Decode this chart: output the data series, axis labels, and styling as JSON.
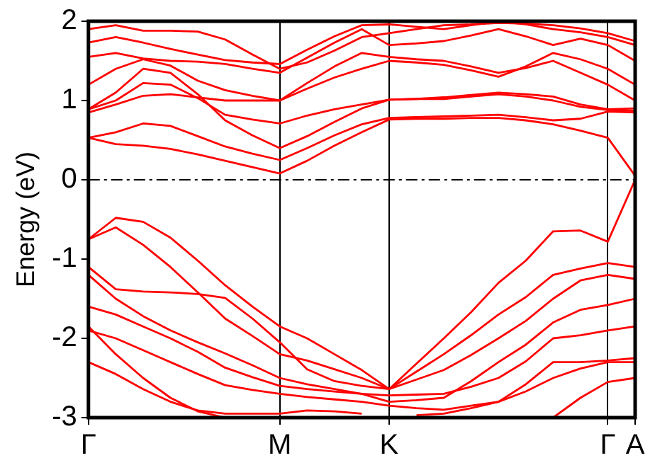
{
  "chart_data": {
    "type": "line",
    "ylabel": "Energy (eV)",
    "categories": [
      "Γ",
      null,
      null,
      null,
      null,
      null,
      null,
      "M",
      null,
      null,
      null,
      "K",
      null,
      null,
      null,
      null,
      null,
      null,
      null,
      "Γ",
      "A"
    ],
    "ylim": [
      -3,
      2
    ],
    "yticks": [
      -3,
      -2,
      -1,
      0,
      1,
      2
    ],
    "grid": "x",
    "legend": false,
    "marker": "none",
    "line_style": "solid",
    "ref_lines": [
      {
        "axis": "y",
        "value": 0,
        "color": "#000000",
        "line_style": "dashed"
      }
    ],
    "series": [
      {
        "color": "#ff0000",
        "values": [
          0.53,
          0.45,
          0.43,
          0.39,
          0.32,
          0.24,
          0.16,
          0.08,
          0.24,
          0.43,
          0.6,
          0.76,
          0.77,
          0.77,
          0.78,
          0.78,
          0.75,
          0.7,
          0.62,
          0.53,
          0.05
        ]
      },
      {
        "color": "#ff0000",
        "values": [
          0.53,
          0.6,
          0.71,
          0.68,
          0.55,
          0.42,
          0.33,
          0.25,
          0.4,
          0.56,
          0.7,
          0.78,
          0.79,
          0.8,
          0.81,
          0.82,
          0.79,
          0.75,
          0.77,
          0.86,
          0.85
        ]
      },
      {
        "color": "#ff0000",
        "values": [
          0.89,
          1.1,
          1.4,
          1.35,
          1.08,
          0.75,
          0.56,
          0.4,
          0.55,
          0.73,
          0.9,
          1.01,
          1.02,
          1.02,
          1.05,
          1.08,
          1.05,
          1.0,
          0.92,
          0.88,
          0.87
        ]
      },
      {
        "color": "#ff0000",
        "values": [
          0.89,
          1.0,
          1.22,
          1.2,
          1.03,
          0.82,
          0.76,
          0.71,
          0.81,
          0.89,
          0.95,
          1.01,
          1.02,
          1.04,
          1.07,
          1.1,
          1.08,
          1.05,
          0.95,
          0.89,
          0.9
        ]
      },
      {
        "color": "#ff0000",
        "values": [
          0.85,
          0.95,
          1.06,
          1.08,
          1.04,
          1.0,
          1.0,
          1.0,
          1.15,
          1.29,
          1.4,
          1.5,
          1.48,
          1.45,
          1.38,
          1.3,
          1.43,
          1.6,
          1.52,
          1.4,
          1.2
        ]
      },
      {
        "color": "#ff0000",
        "values": [
          1.2,
          1.4,
          1.52,
          1.44,
          1.25,
          1.13,
          1.06,
          1.0,
          1.22,
          1.43,
          1.6,
          1.55,
          1.52,
          1.5,
          1.43,
          1.35,
          1.41,
          1.5,
          1.35,
          1.2,
          1.0
        ]
      },
      {
        "color": "#ff0000",
        "values": [
          1.55,
          1.6,
          1.53,
          1.5,
          1.49,
          1.46,
          1.4,
          1.35,
          1.54,
          1.73,
          1.9,
          1.7,
          1.72,
          1.75,
          1.82,
          1.9,
          1.81,
          1.7,
          1.78,
          1.7,
          1.5
        ]
      },
      {
        "color": "#ff0000",
        "values": [
          1.73,
          1.8,
          1.73,
          1.65,
          1.58,
          1.51,
          1.48,
          1.46,
          1.64,
          1.81,
          1.95,
          1.96,
          1.93,
          1.9,
          1.95,
          2.0,
          1.96,
          1.9,
          1.86,
          1.8,
          1.7
        ]
      },
      {
        "color": "#ff0000",
        "values": [
          1.9,
          1.95,
          1.88,
          1.88,
          1.87,
          1.77,
          1.58,
          1.4,
          1.48,
          1.63,
          1.8,
          1.85,
          1.9,
          1.95,
          1.96,
          1.98,
          1.97,
          1.95,
          1.91,
          1.85,
          1.75
        ]
      },
      {
        "color": "#ff0000",
        "values": [
          -0.75,
          -0.48,
          -0.53,
          -0.73,
          -1.02,
          -1.33,
          -1.6,
          -1.85,
          -2.0,
          -2.2,
          -2.4,
          -2.64,
          -2.32,
          -2.0,
          -1.67,
          -1.3,
          -1.02,
          -0.65,
          -0.64,
          -0.78,
          0.0
        ]
      },
      {
        "color": "#ff0000",
        "values": [
          -0.75,
          -0.6,
          -0.82,
          -1.1,
          -1.42,
          -1.75,
          -1.97,
          -2.2,
          -2.28,
          -2.39,
          -2.5,
          -2.64,
          -2.42,
          -2.2,
          -1.96,
          -1.7,
          -1.48,
          -1.2,
          -1.12,
          -1.05,
          -1.1
        ]
      },
      {
        "color": "#ff0000",
        "values": [
          -1.1,
          -1.38,
          -1.41,
          -1.42,
          -1.44,
          -1.49,
          -1.75,
          -2.05,
          -2.39,
          -2.54,
          -2.6,
          -2.64,
          -2.52,
          -2.4,
          -2.21,
          -2.0,
          -1.78,
          -1.5,
          -1.27,
          -1.2,
          -1.25
        ]
      },
      {
        "color": "#ff0000",
        "values": [
          -1.2,
          -1.5,
          -1.72,
          -1.9,
          -2.05,
          -2.19,
          -2.34,
          -2.5,
          -2.58,
          -2.64,
          -2.7,
          -2.8,
          -2.78,
          -2.75,
          -2.54,
          -2.3,
          -2.08,
          -1.8,
          -1.64,
          -1.58,
          -1.5
        ]
      },
      {
        "color": "#ff0000",
        "values": [
          -1.6,
          -1.7,
          -1.85,
          -2.0,
          -2.17,
          -2.37,
          -2.49,
          -2.6,
          -2.64,
          -2.67,
          -2.7,
          -2.72,
          -2.71,
          -2.7,
          -2.61,
          -2.5,
          -2.29,
          -2.0,
          -1.96,
          -1.9,
          -1.85
        ]
      },
      {
        "color": "#ff0000",
        "values": [
          -1.9,
          -2.0,
          -2.15,
          -2.3,
          -2.45,
          -2.59,
          -2.65,
          -2.7,
          -2.74,
          -2.77,
          -2.8,
          -2.85,
          -2.88,
          -2.9,
          -2.85,
          -2.8,
          -2.58,
          -2.3,
          -2.3,
          -2.28,
          -2.25
        ]
      },
      {
        "color": "#ff0000",
        "values": [
          -2.3,
          -2.45,
          -2.64,
          -2.8,
          -2.91,
          -2.95,
          -2.95,
          -2.95,
          -2.91,
          -2.92,
          -2.95,
          null,
          -2.97,
          -2.95,
          -2.88,
          -2.8,
          -2.67,
          -2.5,
          -2.38,
          -2.3,
          -2.3
        ]
      },
      {
        "color": "#ff0000",
        "values": [
          -1.85,
          -2.2,
          -2.5,
          -2.75,
          -2.92,
          -3.0,
          null,
          null,
          null,
          null,
          null,
          null,
          null,
          null,
          null,
          null,
          null,
          -3.0,
          -2.75,
          -2.55,
          -2.5
        ]
      }
    ]
  }
}
